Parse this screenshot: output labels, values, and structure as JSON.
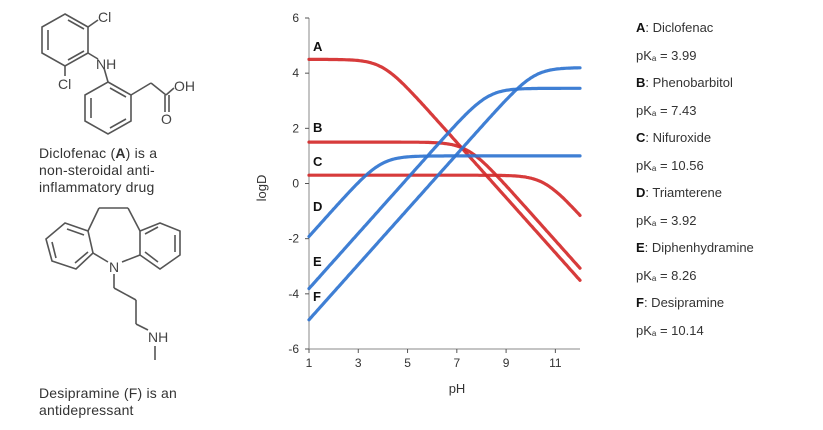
{
  "molecules": {
    "diclofenac": {
      "atoms": [
        "Cl",
        "NH",
        "Cl",
        "OH",
        "O"
      ],
      "caption_lines": [
        "Diclofenac (",
        "A",
        ") is a",
        "non-steroidal anti-",
        "inflammatory drug"
      ]
    },
    "desipramine": {
      "atoms": [
        "N",
        "NH"
      ],
      "caption_lines": [
        "Desipramine (F) is an",
        "antidepressant"
      ]
    }
  },
  "legend": [
    {
      "letter": "A",
      "name": ": Diclofenac",
      "pka_label": "pK",
      "pka_sub": "a",
      "pka_value": " = 3.99"
    },
    {
      "letter": "B",
      "name": ": Phenobarbitol",
      "pka_label": "pK",
      "pka_sub": "a",
      "pka_value": " = 7.43"
    },
    {
      "letter": "C",
      "name": ": Nifuroxide",
      "pka_label": "pK",
      "pka_sub": "a",
      "pka_value": " = 10.56"
    },
    {
      "letter": "D",
      "name": ": Triamterene",
      "pka_label": "pK",
      "pka_sub": "a",
      "pka_value": " = 3.92"
    },
    {
      "letter": "E",
      "name": ": Diphenhydramine",
      "pka_label": "pK",
      "pka_sub": "a",
      "pka_value": " = 8.26"
    },
    {
      "letter": "F",
      "name": ": Desipramine",
      "pka_label": "pK",
      "pka_sub": "a",
      "pka_value": " = 10.14"
    }
  ],
  "colors": {
    "acid": "#d42a2a",
    "base": "#2f74d0",
    "axis": "#888888"
  },
  "chart_data": {
    "type": "line",
    "title": "",
    "xlabel": "pH",
    "ylabel": "logD",
    "xlim": [
      1,
      12
    ],
    "ylim": [
      -6,
      6
    ],
    "xticks": [
      1,
      3,
      5,
      7,
      9,
      11
    ],
    "yticks": [
      -6,
      -4,
      -2,
      0,
      2,
      4,
      6
    ],
    "grid": false,
    "x": [
      1,
      2,
      3,
      4,
      5,
      6,
      7,
      8,
      9,
      10,
      11,
      12
    ],
    "series": [
      {
        "name": "A",
        "compound": "Diclofenac",
        "kind": "acid",
        "pka": 3.99,
        "logP": 4.5,
        "color": "#d42a2a",
        "values": [
          4.5,
          4.5,
          4.49,
          4.2,
          3.46,
          2.49,
          1.49,
          0.49,
          -0.51,
          -1.51,
          -2.51,
          -3.51
        ]
      },
      {
        "name": "B",
        "compound": "Phenobarbitol",
        "kind": "acid",
        "pka": 7.43,
        "logP": 1.5,
        "color": "#d42a2a",
        "values": [
          1.5,
          1.5,
          1.5,
          1.5,
          1.5,
          1.5,
          1.35,
          0.79,
          -0.09,
          -1.07,
          -2.07,
          -3.07
        ]
      },
      {
        "name": "C",
        "compound": "Nifuroxide",
        "kind": "acid",
        "pka": 10.56,
        "logP": 0.3,
        "color": "#d42a2a",
        "values": [
          0.3,
          0.3,
          0.3,
          0.3,
          0.3,
          0.3,
          0.3,
          0.3,
          0.29,
          0.19,
          -0.2,
          -1.16
        ]
      },
      {
        "name": "D",
        "compound": "Triamterene",
        "kind": "base",
        "pka": 3.92,
        "logP": 1.0,
        "color": "#2f74d0",
        "values": [
          -1.92,
          -0.93,
          0.05,
          0.74,
          0.96,
          1.0,
          1.0,
          1.0,
          1.0,
          1.0,
          1.0,
          1.0
        ]
      },
      {
        "name": "E",
        "compound": "Diphenhydramine",
        "kind": "base",
        "pka": 8.26,
        "logP": 3.45,
        "color": "#2f74d0",
        "values": [
          -3.81,
          -2.81,
          -1.81,
          -0.81,
          0.19,
          1.19,
          2.17,
          3.04,
          3.37,
          3.44,
          3.45,
          3.45
        ]
      },
      {
        "name": "F",
        "compound": "Desipramine",
        "kind": "base",
        "pka": 10.14,
        "logP": 4.2,
        "color": "#2f74d0",
        "values": [
          -4.94,
          -3.94,
          -2.94,
          -1.94,
          -0.94,
          0.06,
          1.06,
          2.05,
          3.0,
          3.75,
          4.08,
          4.19
        ]
      }
    ]
  }
}
